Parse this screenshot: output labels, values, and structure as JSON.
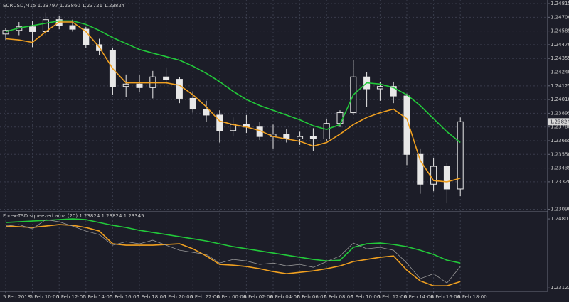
{
  "chart_data": [
    {
      "type": "candlestick",
      "title": "EURUSD,M15  1.23797 1.23860 1.23721 1.23824",
      "categories": [
        "5 Feb 2018",
        null,
        "5 Feb 10:00",
        null,
        "5 Feb 12:00",
        null,
        "5 Feb 14:00",
        null,
        "5 Feb 16:00",
        null,
        "5 Feb 18:00",
        null,
        "5 Feb 20:00",
        null,
        "5 Feb 22:00",
        null,
        "6 Feb 00:00",
        null,
        "6 Feb 02:00",
        null,
        "6 Feb 04:00",
        null,
        "6 Feb 06:00",
        null,
        "6 Feb 08:00",
        null,
        "6 Feb 10:00",
        null,
        "6 Feb 12:00",
        null,
        "6 Feb 14:00",
        null,
        "6 Feb 16:00",
        null,
        "6 Feb 18:00"
      ],
      "open": [
        1.2456,
        1.2459,
        1.2462,
        1.2458,
        1.2468,
        1.2463,
        1.246,
        1.2447,
        1.2442,
        1.2412,
        1.2414,
        1.2411,
        1.242,
        1.2418,
        1.2402,
        1.2393,
        1.2388,
        1.2375,
        1.238,
        1.2378,
        1.237,
        1.2372,
        1.2368,
        1.237,
        1.2368,
        1.2381,
        1.239,
        1.242,
        1.241,
        1.2412,
        1.2404,
        1.2355,
        1.233,
        1.2345,
        1.2326
      ],
      "high": [
        1.2461,
        1.2466,
        1.2467,
        1.2474,
        1.2471,
        1.2468,
        1.2462,
        1.2452,
        1.2444,
        1.2422,
        1.2422,
        1.2425,
        1.2428,
        1.242,
        1.2408,
        1.24,
        1.2392,
        1.2386,
        1.2388,
        1.2382,
        1.238,
        1.2376,
        1.2374,
        1.2377,
        1.2385,
        1.2392,
        1.2434,
        1.2424,
        1.2416,
        1.2416,
        1.2406,
        1.236,
        1.2352,
        1.2348,
        1.2386
      ],
      "low": [
        1.2451,
        1.2455,
        1.2445,
        1.2455,
        1.246,
        1.2458,
        1.2444,
        1.2438,
        1.2405,
        1.2403,
        1.2407,
        1.2402,
        1.2414,
        1.2398,
        1.239,
        1.2382,
        1.2365,
        1.237,
        1.2373,
        1.2367,
        1.236,
        1.2365,
        1.2363,
        1.2358,
        1.2366,
        1.2378,
        1.2388,
        1.2395,
        1.24,
        1.2398,
        1.2346,
        1.2322,
        1.2324,
        1.2314,
        1.232
      ],
      "close": [
        1.2459,
        1.2462,
        1.2458,
        1.2468,
        1.2463,
        1.246,
        1.2447,
        1.2442,
        1.2412,
        1.2414,
        1.2411,
        1.242,
        1.2418,
        1.2402,
        1.2393,
        1.2388,
        1.2375,
        1.238,
        1.2378,
        1.237,
        1.2372,
        1.2368,
        1.237,
        1.2368,
        1.2381,
        1.239,
        1.242,
        1.241,
        1.2412,
        1.2404,
        1.2355,
        1.233,
        1.2345,
        1.2326,
        1.23824
      ],
      "series": [
        {
          "color": "#22c93a",
          "values": [
            1.2458,
            1.2461,
            1.2463,
            1.2465,
            1.2467,
            1.2467,
            1.2464,
            1.2459,
            1.2453,
            1.2448,
            1.2443,
            1.244,
            1.2437,
            1.2434,
            1.2429,
            1.2423,
            1.2416,
            1.2408,
            1.2401,
            1.2396,
            1.2392,
            1.2388,
            1.2384,
            1.2379,
            1.2376,
            1.238,
            1.2405,
            1.2415,
            1.2414,
            1.2411,
            1.2405,
            1.2396,
            1.2385,
            1.2374,
            1.2365
          ]
        },
        {
          "color": "#f0a020",
          "values": [
            1.2452,
            1.2451,
            1.2449,
            1.2458,
            1.2466,
            1.2466,
            1.2458,
            1.2445,
            1.2427,
            1.2415,
            1.2415,
            1.2415,
            1.2415,
            1.2413,
            1.2405,
            1.2395,
            1.2383,
            1.238,
            1.2378,
            1.2375,
            1.237,
            1.2368,
            1.2366,
            1.2362,
            1.2365,
            1.2372,
            1.238,
            1.2386,
            1.239,
            1.2393,
            1.2385,
            1.235,
            1.2333,
            1.2332,
            1.2335
          ]
        }
      ],
      "current_price": 1.23824,
      "ylim": [
        1.23075,
        1.24845
      ],
      "yticks": [
        1.24815,
        {
          "value": 1.247,
          "label": "1.24700"
        },
        1.24585,
        {
          "value": 1.2447,
          "label": "1.24470"
        },
        1.24355,
        {
          "value": 1.2424,
          "label": "1.24240"
        },
        1.24125,
        {
          "value": 1.2401,
          "label": "1.24010"
        },
        1.23895,
        {
          "value": 1.2378,
          "label": "1.23780"
        },
        1.23665,
        {
          "value": 1.2355,
          "label": "1.23550"
        },
        1.23435,
        {
          "value": 1.2332,
          "label": "1.23320"
        },
        {
          "value": 1.2309,
          "label": "1.23090"
        }
      ],
      "grid": true
    },
    {
      "type": "line",
      "title": "Forex-TSD squeezed ama (20) 1.23824 1.23824 1.23345",
      "series": [
        {
          "color": "#22c93a",
          "values": [
            1.24716,
            1.24734,
            1.24751,
            1.24768,
            1.24786,
            1.24803,
            1.24786,
            1.24716,
            1.24647,
            1.24595,
            1.24526,
            1.24474,
            1.24422,
            1.2437,
            1.24318,
            1.24266,
            1.24197,
            1.24128,
            1.24076,
            1.24024,
            1.23972,
            1.2392,
            1.23868,
            1.23816,
            1.23781,
            1.23798,
            1.2411,
            1.24197,
            1.24214,
            1.2418,
            1.24128,
            1.24041,
            1.23937,
            1.23798,
            1.23729
          ]
        },
        {
          "color": "#f0a020",
          "values": [
            1.2463,
            1.24612,
            1.24595,
            1.2463,
            1.24664,
            1.24647,
            1.24595,
            1.24509,
            1.24197,
            1.24162,
            1.24162,
            1.24162,
            1.2418,
            1.24197,
            1.24076,
            1.23902,
            1.23695,
            1.23677,
            1.23643,
            1.23591,
            1.23521,
            1.23469,
            1.23504,
            1.23539,
            1.23591,
            1.2366,
            1.23764,
            1.23816,
            1.23868,
            1.23902,
            1.23556,
            1.23296,
            1.23175,
            1.23175,
            1.23279
          ]
        },
        {
          "color": "#9a9a9a",
          "values": [
            1.2463,
            1.24664,
            1.24561,
            1.24786,
            1.24734,
            1.2463,
            1.24509,
            1.24422,
            1.24162,
            1.24249,
            1.24197,
            1.24283,
            1.24162,
            1.24041,
            1.23989,
            1.23937,
            1.23729,
            1.23816,
            1.23781,
            1.23695,
            1.23729,
            1.2366,
            1.23695,
            1.23625,
            1.23764,
            1.23902,
            1.24214,
            1.24076,
            1.2411,
            1.24041,
            1.23729,
            1.23348,
            1.23469,
            1.23244,
            1.23643
          ]
        }
      ],
      "ylim": [
        1.2304,
        1.2496
      ],
      "yticks": [
        1.24803,
        1.23123
      ],
      "grid": false
    }
  ]
}
